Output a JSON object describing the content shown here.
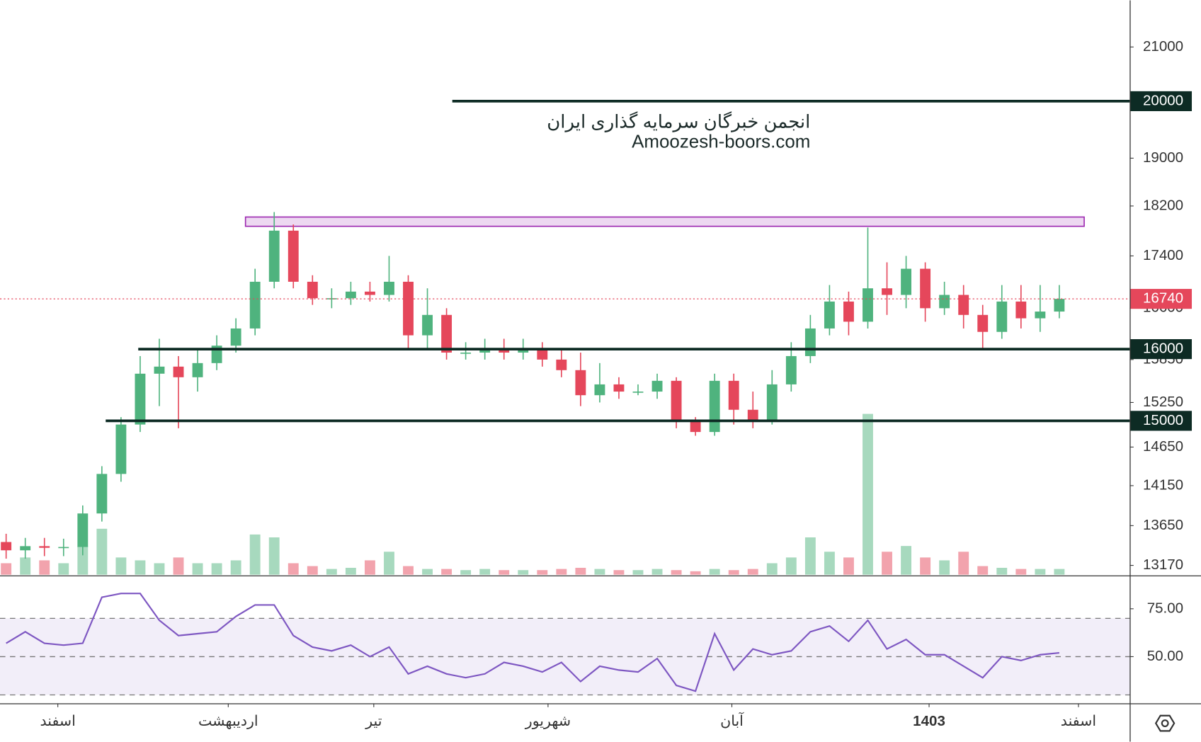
{
  "chart_data": {
    "type": "candlestick",
    "watermark": [
      "انجمن خبرگان سرمایه گذاری ایران",
      "Amoozesh-boors.com"
    ],
    "log_scale": true,
    "xlim": [
      -0.32,
      58.68
    ],
    "ylim": [
      13060,
      21900
    ],
    "yticks": [
      21000,
      19000,
      18200,
      17400,
      16600,
      15850,
      15250,
      14650,
      14150,
      13650,
      13170
    ],
    "xticks": [
      {
        "value": 2.7,
        "label": "اسفند"
      },
      {
        "value": 11.6,
        "label": "اردیبهشت"
      },
      {
        "value": 19.2,
        "label": "تیر"
      },
      {
        "value": 28.3,
        "label": "شهریور"
      },
      {
        "value": 37.9,
        "label": "آبان"
      },
      {
        "value": 48.2,
        "label": "1403"
      },
      {
        "value": 56,
        "label": "اسفند"
      }
    ],
    "up_color": "#4fb37e",
    "down_color": "#e5475b",
    "open": [
      13450,
      13350,
      13400,
      13380,
      13390,
      13800,
      14300,
      14950,
      15650,
      15750,
      15600,
      15800,
      16050,
      16300,
      17000,
      17800,
      17000,
      16750,
      16750,
      16850,
      16800,
      17000,
      16200,
      16500,
      15950,
      15950,
      16000,
      15950,
      16000,
      15850,
      15700,
      15350,
      15500,
      15400,
      15400,
      15550,
      15000,
      14850,
      15550,
      15150,
      15000,
      15500,
      15900,
      16300,
      16700,
      16400,
      16900,
      16800,
      17200,
      16600,
      16800,
      16500,
      16250,
      16700,
      16450,
      16550
    ],
    "high": [
      13550,
      13500,
      13500,
      13490,
      13900,
      14400,
      15050,
      15900,
      16150,
      15900,
      16000,
      16200,
      16450,
      17200,
      18100,
      17900,
      17100,
      16900,
      17000,
      17000,
      17400,
      17100,
      16900,
      16600,
      16100,
      16150,
      16150,
      16150,
      16100,
      16000,
      15950,
      15800,
      15600,
      15500,
      15650,
      15600,
      15050,
      15650,
      15650,
      15400,
      15700,
      16100,
      16500,
      16950,
      16850,
      17850,
      17300,
      17400,
      17300,
      17000,
      16950,
      16650,
      16950,
      16950,
      16950,
      16950
    ],
    "low": [
      13250,
      13250,
      13280,
      13280,
      13290,
      13700,
      14200,
      14850,
      15200,
      14900,
      15400,
      15700,
      15950,
      16200,
      16900,
      16900,
      16650,
      16600,
      16650,
      16700,
      16700,
      16000,
      16000,
      15850,
      15850,
      15850,
      15850,
      15850,
      15750,
      15600,
      15200,
      15250,
      15300,
      15350,
      15300,
      14900,
      14800,
      14800,
      14950,
      14900,
      14950,
      15400,
      15800,
      16200,
      16200,
      16300,
      16500,
      16600,
      16400,
      16500,
      16300,
      16000,
      16150,
      16300,
      16250,
      16450
    ],
    "close": [
      13350,
      13400,
      13380,
      13390,
      13800,
      14300,
      14950,
      15650,
      15750,
      15600,
      15800,
      16050,
      16300,
      17000,
      17800,
      17000,
      16750,
      16750,
      16850,
      16800,
      17000,
      16200,
      16500,
      15950,
      15950,
      16000,
      15950,
      16000,
      15850,
      15700,
      15350,
      15500,
      15400,
      15400,
      15550,
      15000,
      14850,
      15550,
      15150,
      15000,
      15500,
      15900,
      16300,
      16700,
      16400,
      16900,
      16800,
      17200,
      16600,
      16800,
      16500,
      16250,
      16700,
      16450,
      16550,
      16740
    ],
    "volume": [
      20,
      30,
      25,
      20,
      50,
      80,
      30,
      25,
      20,
      30,
      20,
      20,
      25,
      70,
      65,
      20,
      15,
      10,
      12,
      25,
      40,
      15,
      10,
      10,
      8,
      10,
      8,
      8,
      8,
      10,
      12,
      10,
      8,
      8,
      10,
      8,
      6,
      10,
      8,
      10,
      20,
      30,
      65,
      40,
      30,
      280,
      40,
      50,
      30,
      25,
      40,
      15,
      12,
      10,
      10,
      10
    ],
    "volume_lim": [
      0,
      1000
    ],
    "levels": [
      {
        "value": 20000,
        "start": 23.3
      },
      {
        "value": 16000,
        "start": 6.9
      },
      {
        "value": 15000,
        "start": 5.2
      }
    ],
    "level_color": "#0d2b24",
    "last_price": 16740,
    "last_price_color": "#e5475b",
    "zone": {
      "low": 17870,
      "high": 18020,
      "start": 12.5,
      "end": 56.3,
      "color": "#9c27b0"
    },
    "rsi": {
      "values": [
        57,
        63,
        57,
        56,
        57,
        81,
        83,
        83,
        69,
        61,
        62,
        63,
        71,
        77,
        77,
        61,
        55,
        53,
        56,
        50,
        55,
        41,
        45,
        41,
        39,
        41,
        47,
        45,
        42,
        47,
        37,
        45,
        43,
        42,
        49,
        35,
        32,
        62,
        43,
        54,
        51,
        53,
        63,
        66,
        58,
        69,
        54,
        59,
        51,
        51,
        45,
        39,
        50,
        48,
        51,
        52
      ],
      "color": "#7e57c2",
      "ylim": [
        25.6,
        92
      ],
      "yticks": [
        {
          "value": 75,
          "label": "75.00"
        },
        {
          "value": 50,
          "label": "50.00"
        }
      ],
      "bands": [
        70,
        50,
        30
      ]
    }
  }
}
